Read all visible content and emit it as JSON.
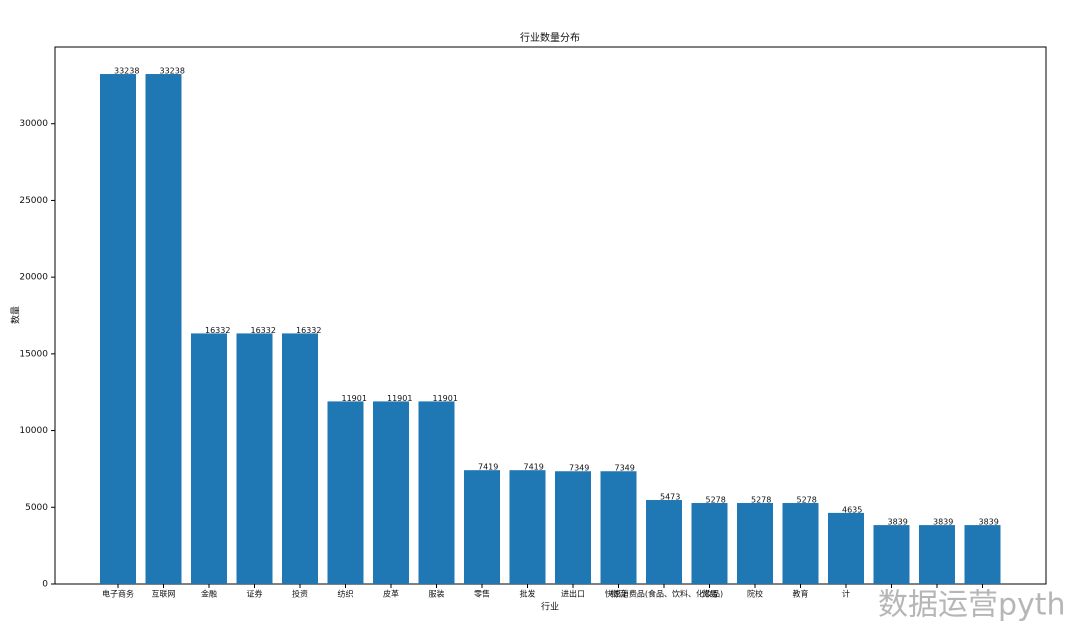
{
  "chart_data": {
    "type": "bar",
    "title": "行业数量分布",
    "x_label": "行业",
    "y_label": "数量",
    "categories": [
      "电子商务",
      "互联网",
      "金融",
      "证券",
      "投资",
      "纺织",
      "皮革",
      "服装",
      "零售",
      "批发",
      "进出口",
      "物流",
      "快速消费品(食品、饮料、化妆品)",
      "贸易",
      "院校",
      "教育",
      "计",
      null,
      null,
      null
    ],
    "values": [
      33238,
      33238,
      16332,
      16332,
      16332,
      11901,
      11901,
      11901,
      7419,
      7419,
      7349,
      7349,
      5473,
      5278,
      5278,
      5278,
      4635,
      3839,
      3839,
      3839
    ],
    "color": "#1f77b4",
    "ylim": [
      0,
      35000
    ],
    "yticks": [
      0,
      5000,
      10000,
      15000,
      20000,
      25000,
      30000
    ],
    "grid": false,
    "watermark": "数据运营pyth"
  }
}
